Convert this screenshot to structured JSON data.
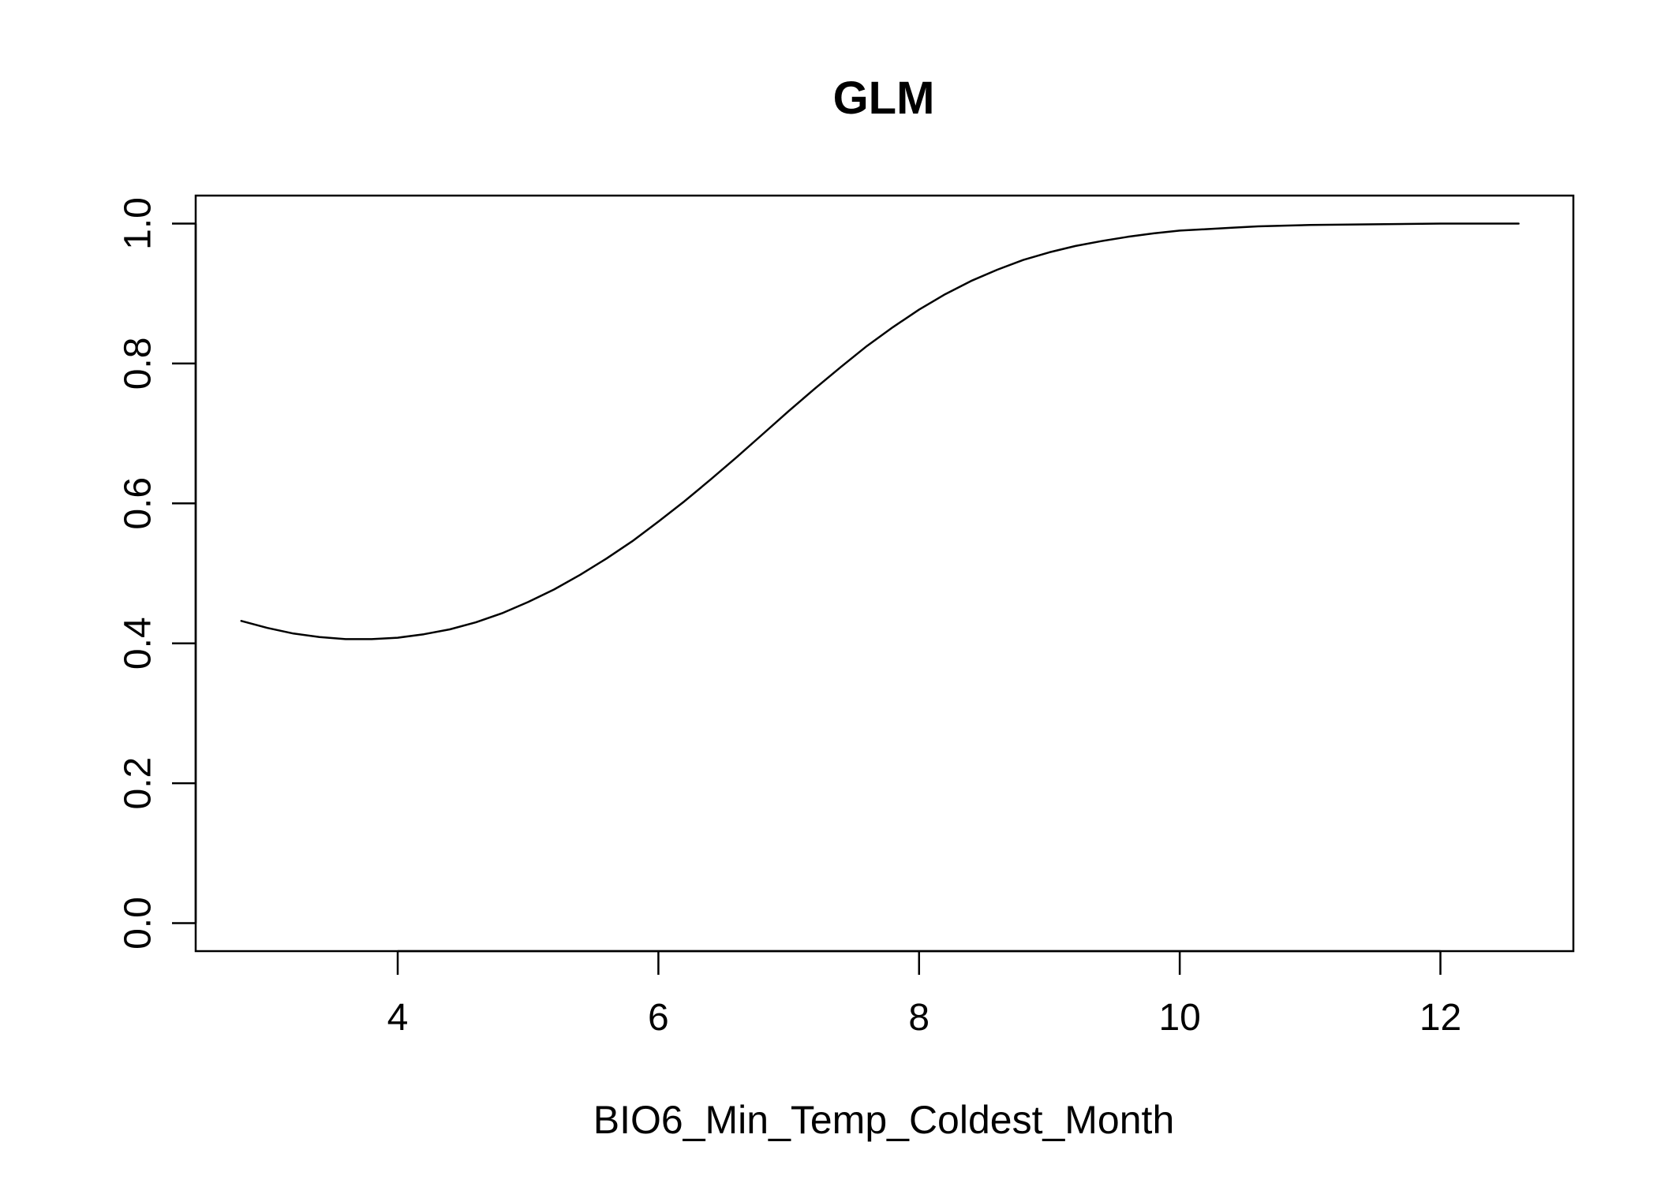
{
  "chart_data": {
    "type": "line",
    "title": "GLM",
    "xlabel": "BIO6_Min_Temp_Coldest_Month",
    "ylabel": "",
    "xlim": [
      2.45,
      13.02
    ],
    "ylim": [
      -0.04,
      1.04
    ],
    "x_ticks": [
      4,
      6,
      8,
      10,
      12
    ],
    "x_tick_labels": [
      "4",
      "6",
      "8",
      "10",
      "12"
    ],
    "y_ticks": [
      0.0,
      0.2,
      0.4,
      0.6,
      0.8,
      1.0
    ],
    "y_tick_labels": [
      "0.0",
      "0.2",
      "0.4",
      "0.6",
      "0.8",
      "1.0"
    ],
    "grid": false,
    "line_color": "#000000",
    "series": [
      {
        "x": [
          2.8,
          3.0,
          3.2,
          3.4,
          3.6,
          3.8,
          4.0,
          4.2,
          4.4,
          4.6,
          4.8,
          5.0,
          5.2,
          5.4,
          5.6,
          5.8,
          6.0,
          6.2,
          6.4,
          6.6,
          6.8,
          7.0,
          7.2,
          7.4,
          7.6,
          7.8,
          8.0,
          8.2,
          8.4,
          8.6,
          8.8,
          9.0,
          9.2,
          9.4,
          9.6,
          9.8,
          10.0,
          10.2,
          10.4,
          10.6,
          10.8,
          11.0,
          11.5,
          12.0,
          12.6
        ],
        "values": [
          0.432,
          0.422,
          0.414,
          0.409,
          0.406,
          0.406,
          0.408,
          0.413,
          0.42,
          0.43,
          0.443,
          0.459,
          0.477,
          0.498,
          0.521,
          0.546,
          0.574,
          0.603,
          0.634,
          0.666,
          0.699,
          0.732,
          0.764,
          0.795,
          0.825,
          0.852,
          0.877,
          0.899,
          0.918,
          0.934,
          0.948,
          0.959,
          0.968,
          0.975,
          0.981,
          0.986,
          0.99,
          0.992,
          0.994,
          0.996,
          0.997,
          0.998,
          0.999,
          1.0,
          1.0
        ]
      }
    ]
  }
}
